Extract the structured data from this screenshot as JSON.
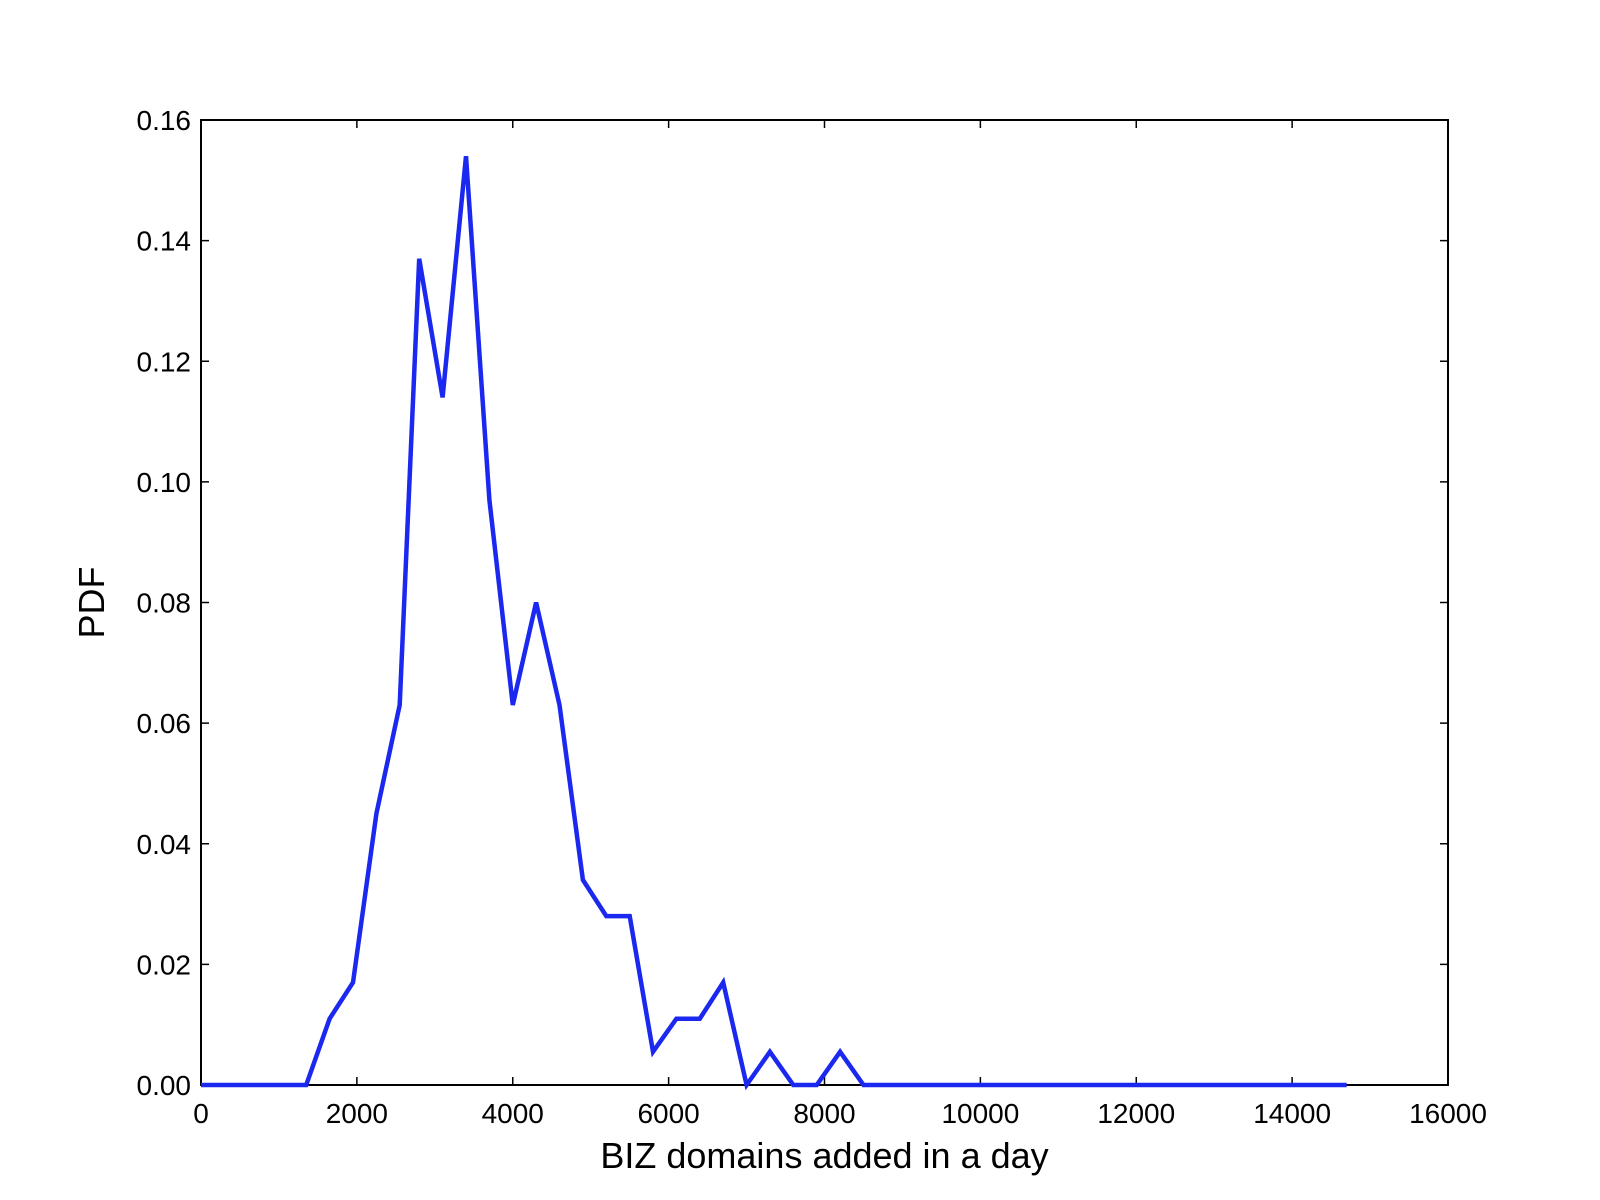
{
  "chart_data": {
    "type": "line",
    "title": "",
    "xlabel": "BIZ domains added in a day",
    "ylabel": "PDF",
    "xlim": [
      0,
      16000
    ],
    "ylim": [
      0,
      0.16
    ],
    "xticks": [
      0,
      2000,
      4000,
      6000,
      8000,
      10000,
      12000,
      14000,
      16000
    ],
    "xtick_labels": [
      "0",
      "2000",
      "4000",
      "6000",
      "8000",
      "10000",
      "12000",
      "14000",
      "16000"
    ],
    "yticks": [
      0,
      0.02,
      0.04,
      0.06,
      0.08,
      0.1,
      0.12,
      0.14,
      0.16
    ],
    "ytick_labels": [
      "0.00",
      "0.02",
      "0.04",
      "0.06",
      "0.08",
      "0.10",
      "0.12",
      "0.14",
      "0.16"
    ],
    "grid": false,
    "legend": "none",
    "series": [
      {
        "color": "#1a28f0",
        "x": [
          0,
          1350,
          1650,
          1950,
          2250,
          2550,
          2800,
          3100,
          3400,
          3700,
          4000,
          4300,
          4600,
          4900,
          5200,
          5500,
          5800,
          6100,
          6400,
          6700,
          7000,
          7300,
          7600,
          7900,
          8200,
          8500,
          14700
        ],
        "y": [
          0.0,
          0.0,
          0.011,
          0.017,
          0.045,
          0.063,
          0.137,
          0.114,
          0.154,
          0.097,
          0.063,
          0.08,
          0.063,
          0.034,
          0.028,
          0.028,
          0.0055,
          0.011,
          0.011,
          0.017,
          0.0,
          0.0055,
          0.0,
          0.0,
          0.0055,
          0.0,
          0.0
        ]
      }
    ]
  }
}
